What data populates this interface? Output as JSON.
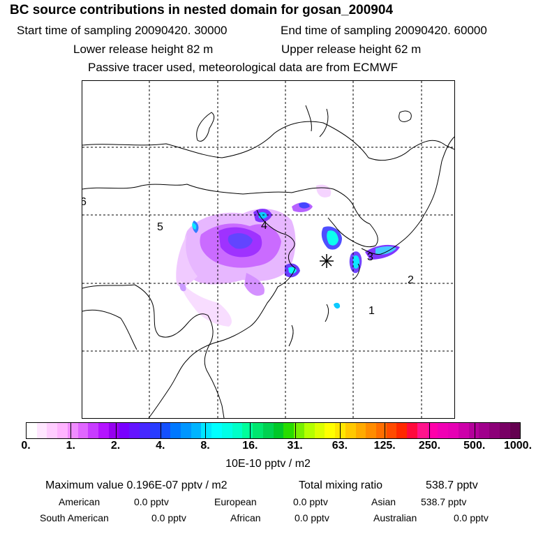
{
  "title": "BC  source contributions in nested domain for gosan_200904",
  "header": {
    "start_time": "Start time of sampling 20090420. 30000",
    "end_time": "End time of sampling 20090420. 60000",
    "lower_height": "Lower release height   82 m",
    "upper_height": "Upper release height   62 m",
    "note": "Passive tracer used, meteorological data are from ECMWF"
  },
  "map": {
    "region_labels": [
      "6",
      "5",
      "4",
      "3",
      "2",
      "1"
    ],
    "receptor_marker": "receptor-star"
  },
  "colorbar": {
    "ticks": [
      "0.",
      "1.",
      "2.",
      "4.",
      "8.",
      "16.",
      "31.",
      "63.",
      "125.",
      "250.",
      "500.",
      "1000."
    ],
    "colors": [
      "#ffffff",
      "#ffe6ff",
      "#ffcdff",
      "#ffb4ff",
      "#f08cff",
      "#e066ff",
      "#c83cff",
      "#b414ff",
      "#9600f0",
      "#7800ff",
      "#6414ff",
      "#4628ff",
      "#283cff",
      "#1450ff",
      "#0078ff",
      "#0096ff",
      "#00b4ff",
      "#00e6ff",
      "#00ffff",
      "#00ffe6",
      "#00ffc8",
      "#00ff9b",
      "#00e66e",
      "#00d250",
      "#00c828",
      "#28dc00",
      "#78f000",
      "#b4ff00",
      "#dcff00",
      "#ffff00",
      "#ffe600",
      "#ffc800",
      "#ffaa00",
      "#ff8c00",
      "#ff6e00",
      "#ff4b00",
      "#ff2800",
      "#ff0a3c",
      "#ff148c",
      "#ff00aa",
      "#f000b4",
      "#e600b4",
      "#cd00aa",
      "#b4009b",
      "#a0008c",
      "#8c0078",
      "#780064",
      "#640050"
    ],
    "units": "10E-10 pptv / m2"
  },
  "stats": {
    "max_value": "Maximum value  0.196E-07 pptv / m2",
    "total_label": "Total mixing ratio",
    "total_value": "538.7 pptv",
    "american_label": "American",
    "american_value": "0.0 pptv",
    "european_label": "European",
    "european_value": "0.0 pptv",
    "asian_label": "Asian",
    "asian_value": "538.7 pptv",
    "south_american_label": "South American",
    "south_american_value": "0.0 pptv",
    "african_label": "African",
    "african_value": "0.0 pptv",
    "australian_label": "Australian",
    "australian_value": "0.0 pptv"
  }
}
